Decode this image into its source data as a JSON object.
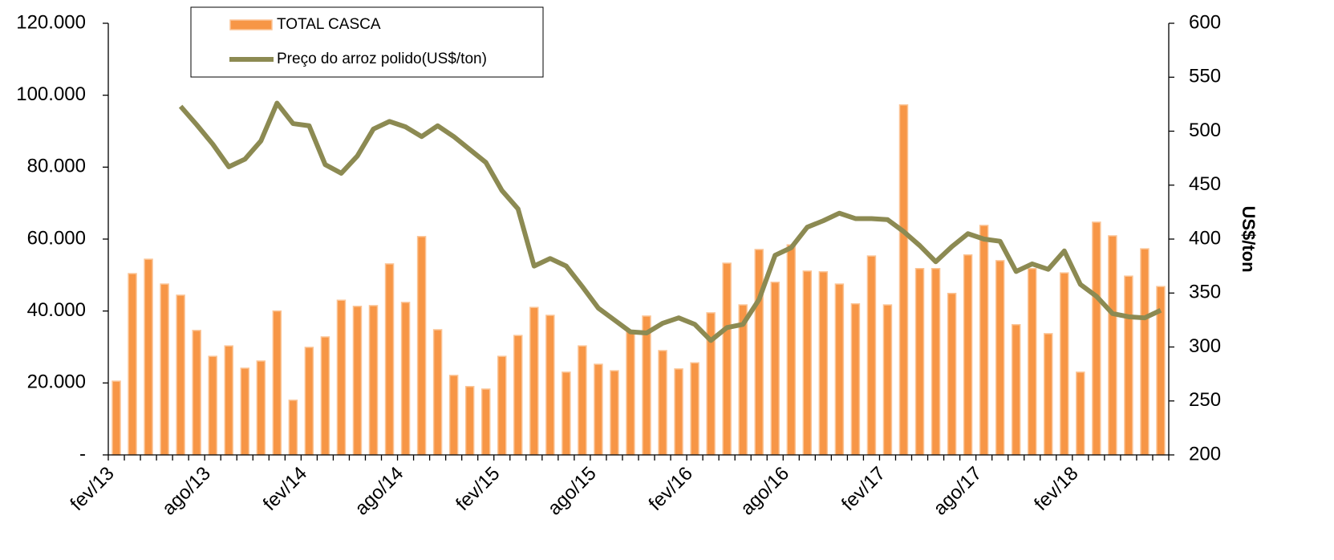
{
  "chart_data": {
    "type": "bar_line",
    "categories": [
      "fev/13",
      null,
      null,
      null,
      null,
      null,
      "ago/13",
      null,
      null,
      null,
      null,
      null,
      "fev/14",
      null,
      null,
      null,
      null,
      null,
      "ago/14",
      null,
      null,
      null,
      null,
      null,
      "fev/15",
      null,
      null,
      null,
      null,
      null,
      "ago/15",
      null,
      null,
      null,
      null,
      null,
      "fev/16",
      null,
      null,
      null,
      null,
      null,
      "ago/16",
      null,
      null,
      null,
      null,
      null,
      "fev/17",
      null,
      null,
      null,
      null,
      null,
      "ago/17",
      null,
      null,
      null,
      null,
      null,
      "fev/18",
      null,
      null,
      null,
      null,
      null
    ],
    "series": [
      {
        "name": "TOTAL CASCA",
        "type": "bar",
        "color": "#f79646",
        "values": [
          20500,
          50400,
          54400,
          47500,
          44400,
          34600,
          27400,
          30300,
          24100,
          26100,
          40000,
          15200,
          29900,
          32800,
          43000,
          41300,
          41500,
          53100,
          42400,
          60700,
          34800,
          22100,
          19000,
          18300,
          27400,
          33200,
          41000,
          38800,
          23000,
          30300,
          25200,
          23400,
          34300,
          38600,
          29000,
          23900,
          25600,
          39500,
          53300,
          41700,
          57100,
          48000,
          58400,
          51100,
          50900,
          47500,
          42000,
          55300,
          41700,
          97300,
          51800,
          51800,
          44900,
          55600,
          63800,
          54000,
          36200,
          51800,
          33700,
          50600,
          23000,
          64700,
          60900,
          49700,
          57300,
          46800
        ]
      },
      {
        "name": "Preço do arroz polido(US$/ton)",
        "type": "line",
        "axis": "y2",
        "color": "#8c8a52",
        "values": [
          null,
          null,
          null,
          null,
          523,
          506,
          488,
          467,
          474,
          491,
          526,
          507,
          505,
          469,
          461,
          477,
          502,
          509,
          504,
          495,
          505,
          495,
          483,
          471,
          445,
          428,
          375,
          382,
          375,
          356,
          336,
          325,
          314,
          313,
          322,
          327,
          321,
          306,
          318,
          321,
          344,
          385,
          392,
          411,
          417,
          424,
          419,
          419,
          418,
          407,
          394,
          379,
          393,
          405,
          400,
          398,
          370,
          377,
          372,
          389,
          358,
          347,
          331,
          328,
          327,
          334
        ]
      }
    ],
    "ylim": [
      0,
      120000
    ],
    "yticks": [
      {
        "value": 0,
        "label": "-"
      },
      {
        "value": 20000,
        "label": "20.000"
      },
      {
        "value": 40000,
        "label": "40.000"
      },
      {
        "value": 60000,
        "label": "60.000"
      },
      {
        "value": 80000,
        "label": "80.000"
      },
      {
        "value": 100000,
        "label": "100.000"
      },
      {
        "value": 120000,
        "label": "120.000"
      }
    ],
    "y2lim": [
      200,
      600
    ],
    "y2ticks": [
      200,
      250,
      300,
      350,
      400,
      450,
      500,
      550,
      600
    ],
    "y2label": "US$/ton",
    "legend": "top-left"
  }
}
